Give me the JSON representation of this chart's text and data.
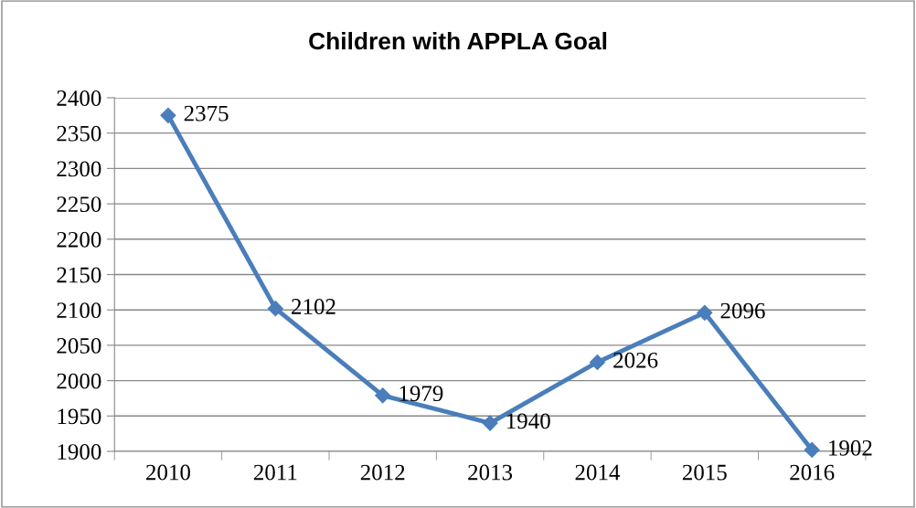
{
  "chart_data": {
    "type": "line",
    "title": "Children with APPLA Goal",
    "categories": [
      "2010",
      "2011",
      "2012",
      "2013",
      "2014",
      "2015",
      "2016"
    ],
    "series": [
      {
        "color": "#4a7ebb",
        "values": [
          2375,
          2102,
          1979,
          1940,
          2026,
          2096,
          1902
        ]
      }
    ],
    "ylim": [
      1900,
      2400
    ],
    "yticks": [
      1900,
      1950,
      2000,
      2050,
      2100,
      2150,
      2200,
      2250,
      2300,
      2350,
      2400
    ],
    "grid": "y",
    "marker": "diamond",
    "line_style": "solid",
    "data_labels": true,
    "legend": false
  }
}
